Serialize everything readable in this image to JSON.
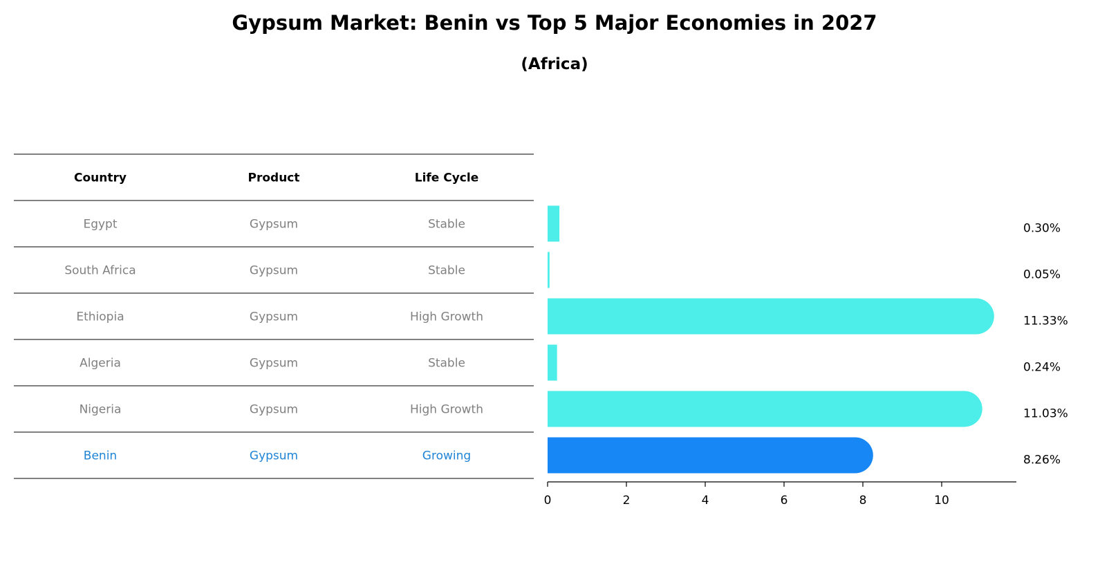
{
  "title": "Gypsum Market: Benin vs Top 5 Major Economies in 2027",
  "subtitle": "(Africa)",
  "table": {
    "headers": [
      "Country",
      "Product",
      "Life Cycle"
    ]
  },
  "colors": {
    "bar_default": "#4dede9",
    "bar_highlight": "#1787f5",
    "text_muted": "#808080",
    "text_highlight": "#1f84d6"
  },
  "chart_data": {
    "type": "bar",
    "orientation": "horizontal",
    "categories": [
      "Egypt",
      "South Africa",
      "Ethiopia",
      "Algeria",
      "Nigeria",
      "Benin"
    ],
    "rows": [
      {
        "country": "Egypt",
        "product": "Gypsum",
        "life_cycle": "Stable",
        "value": 0.3,
        "label": "0.30%",
        "highlight": false
      },
      {
        "country": "South Africa",
        "product": "Gypsum",
        "life_cycle": "Stable",
        "value": 0.05,
        "label": "0.05%",
        "highlight": false
      },
      {
        "country": "Ethiopia",
        "product": "Gypsum",
        "life_cycle": "High Growth",
        "value": 11.33,
        "label": "11.33%",
        "highlight": false
      },
      {
        "country": "Algeria",
        "product": "Gypsum",
        "life_cycle": "Stable",
        "value": 0.24,
        "label": "0.24%",
        "highlight": false
      },
      {
        "country": "Nigeria",
        "product": "Gypsum",
        "life_cycle": "High Growth",
        "value": 11.03,
        "label": "11.03%",
        "highlight": false
      },
      {
        "country": "Benin",
        "product": "Gypsum",
        "life_cycle": "Growing",
        "value": 8.26,
        "label": "8.26%",
        "highlight": true
      }
    ],
    "xlim": [
      0,
      11.9
    ],
    "xticks": [
      0,
      2,
      4,
      6,
      8,
      10
    ],
    "xlabel": "",
    "ylabel": "",
    "grid": false,
    "legend": "none"
  }
}
